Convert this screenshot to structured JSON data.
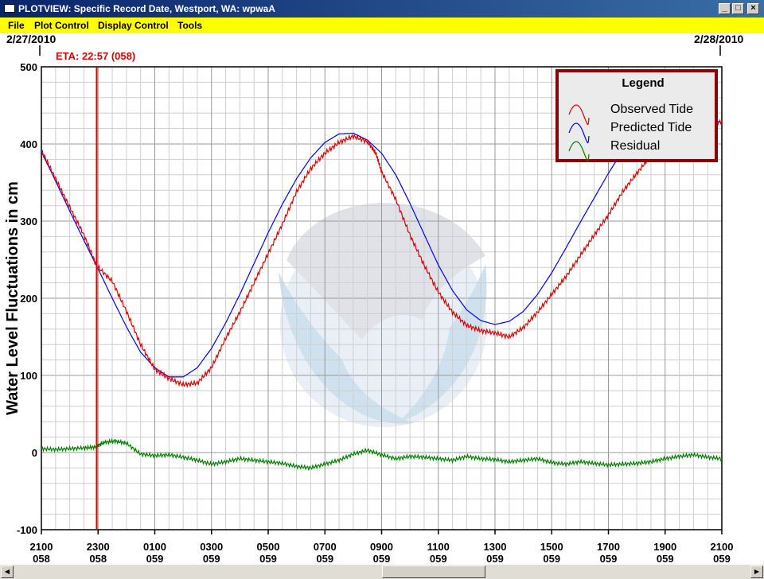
{
  "window": {
    "title": "PLOTVIEW: Specific Record Date, Westport, WA: wpwaA",
    "minimize_label": "_",
    "maximize_label": "□",
    "close_label": "×"
  },
  "menu": {
    "items": [
      "File",
      "Plot Control",
      "Display Control",
      "Tools"
    ]
  },
  "plot": {
    "date_start": "2/27/2010",
    "date_end": "2/28/2010",
    "eta_label": "ETA: 22:57 (058)",
    "legend_title": "Legend",
    "colors": {
      "observed": "#dd0000",
      "predicted": "#0000ff",
      "residual": "#008000",
      "eta_line": "#dd0000",
      "legend_border": "#8b0000"
    }
  },
  "chart_data": {
    "type": "line",
    "title": "",
    "ylabel": "Water Level Fluctuations in cm",
    "xlabel": "",
    "ylim": [
      -100,
      500
    ],
    "yticks": [
      -100,
      0,
      100,
      200,
      300,
      400,
      500
    ],
    "xlim_hours": [
      0,
      24
    ],
    "xticks": [
      {
        "time": "2100",
        "day": "058"
      },
      {
        "time": "2300",
        "day": "058"
      },
      {
        "time": "0100",
        "day": "059"
      },
      {
        "time": "0300",
        "day": "059"
      },
      {
        "time": "0500",
        "day": "059"
      },
      {
        "time": "0700",
        "day": "059"
      },
      {
        "time": "0900",
        "day": "059"
      },
      {
        "time": "1100",
        "day": "059"
      },
      {
        "time": "1300",
        "day": "059"
      },
      {
        "time": "1500",
        "day": "059"
      },
      {
        "time": "1700",
        "day": "059"
      },
      {
        "time": "1900",
        "day": "059"
      },
      {
        "time": "2100",
        "day": "059"
      }
    ],
    "eta_hour": 1.95,
    "grid": true,
    "legend_position": "top-right",
    "series": [
      {
        "name": "Observed Tide",
        "x": [
          0,
          0.5,
          1,
          1.5,
          1.95,
          2.5,
          3,
          3.5,
          4,
          4.5,
          5,
          5.5,
          6,
          6.5,
          7,
          7.5,
          8,
          8.5,
          9,
          9.5,
          10,
          10.5,
          11,
          11.5,
          11.8,
          12,
          12.5,
          13,
          13.5,
          14,
          14.5,
          15,
          15.5,
          16,
          16.5,
          17,
          17.5,
          18,
          18.5,
          19,
          19.5,
          20,
          20.5,
          21,
          21.5,
          22,
          22.5,
          23,
          23.5,
          24
        ],
        "y": [
          392,
          355,
          318,
          282,
          242,
          222,
          183,
          140,
          108,
          96,
          88,
          90,
          110,
          148,
          182,
          220,
          258,
          296,
          338,
          368,
          388,
          402,
          410,
          403,
          388,
          364,
          328,
          282,
          243,
          208,
          182,
          165,
          158,
          155,
          150,
          162,
          182,
          205,
          228,
          255,
          282,
          308,
          338,
          362,
          385,
          398,
          410,
          418,
          420,
          430
        ]
      },
      {
        "name": "Predicted Tide",
        "x": [
          0,
          0.5,
          1,
          1.5,
          2,
          2.5,
          3,
          3.5,
          4,
          4.5,
          5,
          5.5,
          6,
          6.5,
          7,
          7.5,
          8,
          8.5,
          9,
          9.5,
          10,
          10.5,
          11,
          11.5,
          12,
          12.5,
          13,
          13.5,
          14,
          14.5,
          15,
          15.5,
          16,
          16.5,
          17,
          17.5,
          18,
          18.5,
          19,
          19.5,
          20,
          20.5,
          21,
          21.5,
          22,
          22.5,
          23,
          23.5,
          24
        ],
        "y": [
          390,
          352,
          313,
          275,
          238,
          200,
          163,
          130,
          110,
          98,
          98,
          110,
          135,
          168,
          205,
          245,
          285,
          322,
          355,
          382,
          402,
          413,
          414,
          405,
          388,
          360,
          323,
          283,
          243,
          210,
          185,
          171,
          166,
          170,
          183,
          205,
          233,
          265,
          298,
          330,
          362,
          391,
          414,
          430,
          438,
          438,
          436,
          432,
          428
        ]
      },
      {
        "name": "Residual",
        "x": [
          0,
          0.5,
          1,
          1.5,
          1.9,
          2.2,
          2.6,
          3,
          3.5,
          4,
          4.5,
          5,
          5.5,
          6,
          6.5,
          7,
          7.5,
          8,
          8.5,
          9,
          9.5,
          10,
          10.5,
          11,
          11.5,
          12,
          12.5,
          13,
          13.5,
          14,
          14.5,
          15,
          15.5,
          16,
          16.5,
          17,
          17.5,
          18,
          18.5,
          19,
          19.5,
          20,
          20.5,
          21,
          21.5,
          22,
          22.5,
          23,
          23.5,
          24
        ],
        "y": [
          5,
          4,
          5,
          6,
          7,
          13,
          15,
          12,
          -2,
          -4,
          -3,
          -6,
          -10,
          -15,
          -12,
          -8,
          -10,
          -12,
          -14,
          -18,
          -20,
          -15,
          -10,
          -2,
          3,
          -3,
          -8,
          -5,
          -6,
          -8,
          -10,
          -5,
          -8,
          -9,
          -12,
          -10,
          -8,
          -13,
          -15,
          -12,
          -14,
          -16,
          -15,
          -14,
          -12,
          -8,
          -5,
          -3,
          -6,
          -8
        ]
      }
    ]
  }
}
